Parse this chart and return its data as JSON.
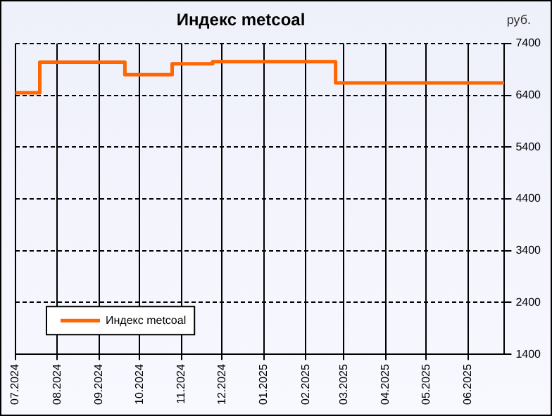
{
  "chart_data": {
    "type": "step",
    "title": "Индекс metcoal",
    "ylabel": "руб.",
    "x": [
      "2024-07-01",
      "2024-07-19",
      "2024-09-20",
      "2024-10-25",
      "2024-11-24",
      "2025-02-23",
      "2025-06-28"
    ],
    "series": [
      {
        "name": "Индекс metcoal",
        "color": "#ff6600",
        "values": [
          6450,
          7040,
          6800,
          7010,
          7050,
          6640,
          6640
        ]
      }
    ],
    "xlim": [
      "2024-07-01",
      "2025-06-28"
    ],
    "xticks": [
      {
        "value": "2024-07-01",
        "label": "07.2024"
      },
      {
        "value": "2024-08-01",
        "label": "08.2024"
      },
      {
        "value": "2024-09-01",
        "label": "09.2024"
      },
      {
        "value": "2024-10-01",
        "label": "10.2024"
      },
      {
        "value": "2024-11-01",
        "label": "11.2024"
      },
      {
        "value": "2024-12-01",
        "label": "12.2024"
      },
      {
        "value": "2025-01-01",
        "label": "01.2025"
      },
      {
        "value": "2025-02-01",
        "label": "02.2025"
      },
      {
        "value": "2025-03-01",
        "label": "03.2025"
      },
      {
        "value": "2025-04-01",
        "label": "04.2025"
      },
      {
        "value": "2025-05-01",
        "label": "05.2025"
      },
      {
        "value": "2025-06-01",
        "label": "06.2025"
      }
    ],
    "ylim": [
      1400,
      7400
    ],
    "yticks": [
      1400,
      2400,
      3400,
      4400,
      5400,
      6400,
      7400
    ],
    "grid": true,
    "legend": "bottom left",
    "line_style": "solid",
    "marker": "none"
  }
}
